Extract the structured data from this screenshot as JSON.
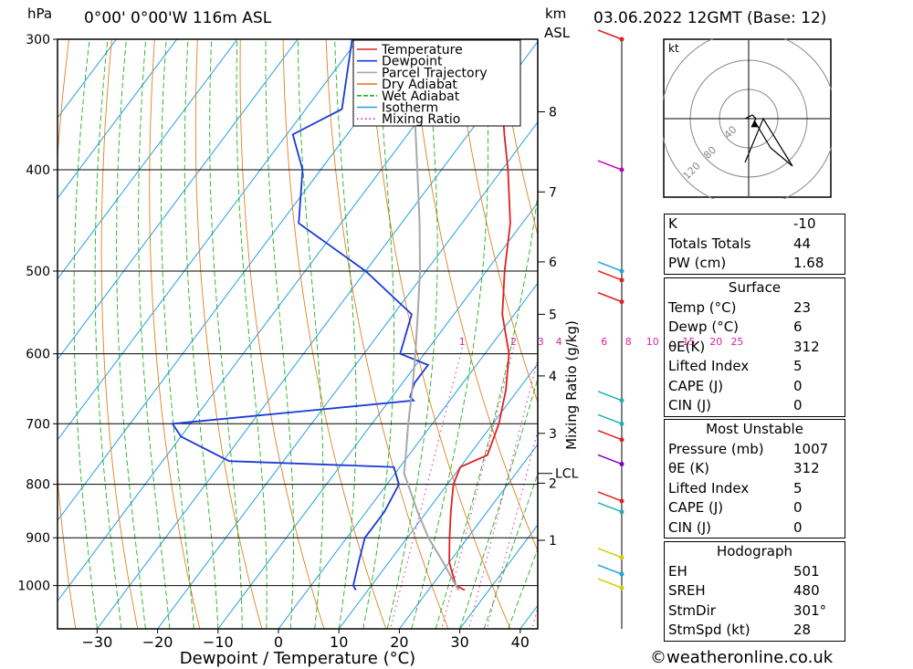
{
  "header": {
    "location": "0°00' 0°00'W 116m ASL",
    "datetime": "03.06.2022 12GMT (Base: 12)",
    "p_unit": "hPa",
    "km_unit": "km",
    "asl_unit": "ASL"
  },
  "copyright": "©weatheronline.co.uk",
  "chart_data": {
    "type": "line",
    "xlabel": "Dewpoint / Temperature (°C)",
    "ylabel": "",
    "mixing_ratio_label": "Mixing Ratio (g/kg)",
    "x_ticks": [
      -30,
      -20,
      -10,
      0,
      10,
      20,
      30,
      40
    ],
    "xlim": [
      -37,
      43
    ],
    "ylim": [
      1100,
      300
    ],
    "y_ticks": [
      300,
      400,
      500,
      600,
      700,
      800,
      900,
      1000
    ],
    "y_scale": "log",
    "km_ticks": [
      {
        "label": "8",
        "p": 352
      },
      {
        "label": "7",
        "p": 420
      },
      {
        "label": "6",
        "p": 490
      },
      {
        "label": "5",
        "p": 550
      },
      {
        "label": "4",
        "p": 630
      },
      {
        "label": "3",
        "p": 715
      },
      {
        "label": "2",
        "p": 798
      },
      {
        "label": "1",
        "p": 905
      }
    ],
    "lcl": {
      "label": "LCL",
      "p": 781
    },
    "mixing_ratio_ticks": [
      "1",
      "2",
      "3",
      "4",
      "6",
      "8",
      "10",
      "15",
      "20",
      "25"
    ],
    "mixing_ratio_label_p": 592,
    "mixing_ratio_x_at_label": [
      -4.5,
      4,
      8.5,
      11.5,
      19,
      23,
      27,
      33,
      37.5,
      41
    ],
    "legend": {
      "position": "top-right",
      "items": [
        {
          "name": "Temperature",
          "color": "#e02020"
        },
        {
          "name": "Dewpoint",
          "color": "#1a3ad8"
        },
        {
          "name": "Parcel Trajectory",
          "color": "#a8a8a8"
        },
        {
          "name": "Dry Adiabat",
          "color": "#e08020"
        },
        {
          "name": "Wet Adiabat",
          "color": "#20b020"
        },
        {
          "name": "Isotherm",
          "color": "#20a0e0"
        },
        {
          "name": "Mixing Ratio",
          "color": "#e020a0"
        }
      ]
    },
    "series": [
      {
        "name": "Temperature",
        "color": "#e02020",
        "points": [
          {
            "p": 1010,
            "t": 26
          },
          {
            "p": 1000,
            "t": 24
          },
          {
            "p": 950,
            "t": 20
          },
          {
            "p": 900,
            "t": 17
          },
          {
            "p": 850,
            "t": 14
          },
          {
            "p": 800,
            "t": 11
          },
          {
            "p": 770,
            "t": 10
          },
          {
            "p": 750,
            "t": 13
          },
          {
            "p": 700,
            "t": 11
          },
          {
            "p": 650,
            "t": 8
          },
          {
            "p": 600,
            "t": 4
          },
          {
            "p": 550,
            "t": -2
          },
          {
            "p": 500,
            "t": -7
          },
          {
            "p": 450,
            "t": -12
          },
          {
            "p": 400,
            "t": -19
          },
          {
            "p": 370,
            "t": -24
          },
          {
            "p": 330,
            "t": -31
          },
          {
            "p": 300,
            "t": -37
          }
        ]
      },
      {
        "name": "Dewpoint",
        "color": "#1a3ad8",
        "points": [
          {
            "p": 1010,
            "t": 8
          },
          {
            "p": 1000,
            "t": 7
          },
          {
            "p": 950,
            "t": 5
          },
          {
            "p": 900,
            "t": 3
          },
          {
            "p": 870,
            "t": 3
          },
          {
            "p": 850,
            "t": 3
          },
          {
            "p": 800,
            "t": 2
          },
          {
            "p": 770,
            "t": -1
          },
          {
            "p": 760,
            "t": -29
          },
          {
            "p": 720,
            "t": -40
          },
          {
            "p": 700,
            "t": -43
          },
          {
            "p": 680,
            "t": -22
          },
          {
            "p": 665,
            "t": -6
          },
          {
            "p": 660,
            "t": -7
          },
          {
            "p": 640,
            "t": -8
          },
          {
            "p": 615,
            "t": -8
          },
          {
            "p": 600,
            "t": -14
          },
          {
            "p": 550,
            "t": -17
          },
          {
            "p": 500,
            "t": -30
          },
          {
            "p": 450,
            "t": -47
          },
          {
            "p": 400,
            "t": -53
          },
          {
            "p": 370,
            "t": -59
          },
          {
            "p": 350,
            "t": -54
          },
          {
            "p": 300,
            "t": -61
          }
        ]
      },
      {
        "name": "Parcel Trajectory",
        "color": "#a8a8a8",
        "points": [
          {
            "p": 1010,
            "t": 25
          },
          {
            "p": 1000,
            "t": 24
          },
          {
            "p": 950,
            "t": 19
          },
          {
            "p": 900,
            "t": 13.5
          },
          {
            "p": 850,
            "t": 8.5
          },
          {
            "p": 800,
            "t": 3.5
          },
          {
            "p": 781,
            "t": 1.5
          },
          {
            "p": 750,
            "t": -0.5
          },
          {
            "p": 700,
            "t": -4
          },
          {
            "p": 650,
            "t": -7.5
          },
          {
            "p": 600,
            "t": -11.5
          },
          {
            "p": 550,
            "t": -16
          },
          {
            "p": 500,
            "t": -21
          },
          {
            "p": 450,
            "t": -27
          },
          {
            "p": 400,
            "t": -34
          },
          {
            "p": 350,
            "t": -42
          },
          {
            "p": 300,
            "t": -51
          }
        ]
      }
    ],
    "wind_profile": [
      {
        "p": 300,
        "color": "#e02020"
      },
      {
        "p": 400,
        "color": "#c000c0"
      },
      {
        "p": 500,
        "color": "#20a0e0"
      },
      {
        "p": 510,
        "color": "#e02020"
      },
      {
        "p": 535,
        "color": "#e02020"
      },
      {
        "p": 665,
        "color": "#20b0b0"
      },
      {
        "p": 700,
        "color": "#20b0b0"
      },
      {
        "p": 725,
        "color": "#e02020"
      },
      {
        "p": 765,
        "color": "#8000c0"
      },
      {
        "p": 830,
        "color": "#e02020"
      },
      {
        "p": 850,
        "color": "#20b0b0"
      },
      {
        "p": 940,
        "color": "#d0d000"
      },
      {
        "p": 975,
        "color": "#20a0e0"
      },
      {
        "p": 1005,
        "color": "#d0d000"
      }
    ],
    "hodograph": {
      "unit": "kt",
      "rings": [
        "40",
        "80",
        "120"
      ],
      "path_kt": [
        [
          -5,
          0
        ],
        [
          5,
          5
        ],
        [
          10,
          0
        ],
        [
          8,
          -3
        ],
        [
          30,
          -40
        ],
        [
          60,
          -65
        ],
        [
          20,
          0
        ],
        [
          -5,
          -60
        ]
      ],
      "storm_motion_kt": [
        8,
        -8
      ]
    }
  },
  "tables": [
    {
      "rows": [
        {
          "label": "K",
          "value": "-10"
        },
        {
          "label": "Totals Totals",
          "value": "44"
        },
        {
          "label": "PW (cm)",
          "value": "1.68"
        }
      ]
    },
    {
      "title": "Surface",
      "rows": [
        {
          "label": "Temp (°C)",
          "value": "23"
        },
        {
          "label": "Dewp (°C)",
          "value": "6"
        },
        {
          "label": "θE(K)",
          "value": "312"
        },
        {
          "label": "Lifted Index",
          "value": "5"
        },
        {
          "label": "CAPE (J)",
          "value": "0"
        },
        {
          "label": "CIN (J)",
          "value": "0"
        }
      ]
    },
    {
      "title": "Most Unstable",
      "rows": [
        {
          "label": "Pressure (mb)",
          "value": "1007"
        },
        {
          "label": "θE (K)",
          "value": "312"
        },
        {
          "label": "Lifted Index",
          "value": "5"
        },
        {
          "label": "CAPE (J)",
          "value": "0"
        },
        {
          "label": "CIN (J)",
          "value": "0"
        }
      ]
    },
    {
      "title": "Hodograph",
      "rows": [
        {
          "label": "EH",
          "value": "501"
        },
        {
          "label": "SREH",
          "value": "480"
        },
        {
          "label": "StmDir",
          "value": "301°"
        },
        {
          "label": "StmSpd (kt)",
          "value": "28"
        }
      ]
    }
  ]
}
